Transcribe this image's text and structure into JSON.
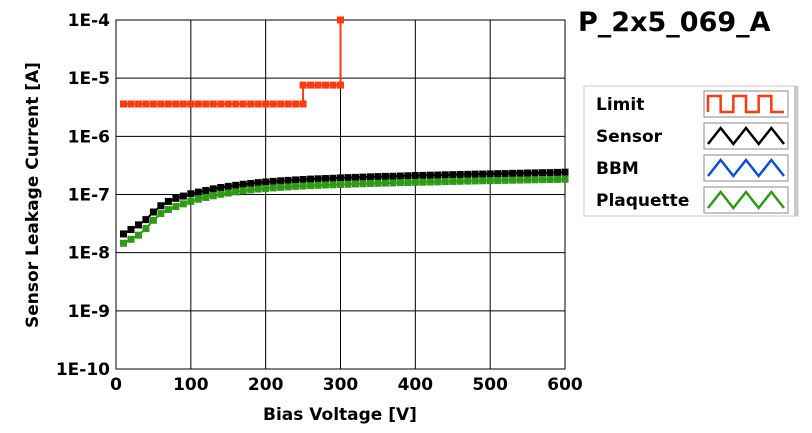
{
  "chart_data": {
    "type": "line",
    "title": "P_2x5_069_A",
    "xlabel": "Bias Voltage [V]",
    "ylabel": "Sensor Leakage Current [A]",
    "xlim": [
      0,
      600
    ],
    "ylim": [
      1e-10,
      0.0001
    ],
    "yscale": "log",
    "grid": true,
    "legend_position": "right",
    "x_ticks": [
      0,
      100,
      200,
      300,
      400,
      500,
      600
    ],
    "x_tick_labels": [
      "0",
      "100",
      "200",
      "300",
      "400",
      "500",
      "600"
    ],
    "y_ticks": [
      1e-10,
      1e-09,
      1e-08,
      1e-07,
      1e-06,
      1e-05,
      0.0001
    ],
    "y_tick_labels": [
      "1E-10",
      "1E-9",
      "1E-8",
      "1E-7",
      "1E-6",
      "1E-5",
      "1E-4"
    ],
    "series": [
      {
        "name": "Limit",
        "color": "#ff3a0f",
        "x": [
          10,
          20,
          30,
          40,
          50,
          60,
          70,
          80,
          90,
          100,
          110,
          120,
          130,
          140,
          150,
          160,
          170,
          180,
          190,
          200,
          210,
          220,
          230,
          240,
          250,
          250,
          260,
          270,
          280,
          290,
          300,
          300
        ],
        "y": [
          3.6e-06,
          3.6e-06,
          3.6e-06,
          3.6e-06,
          3.6e-06,
          3.6e-06,
          3.6e-06,
          3.6e-06,
          3.6e-06,
          3.6e-06,
          3.6e-06,
          3.6e-06,
          3.6e-06,
          3.6e-06,
          3.6e-06,
          3.6e-06,
          3.6e-06,
          3.6e-06,
          3.6e-06,
          3.6e-06,
          3.6e-06,
          3.6e-06,
          3.6e-06,
          3.6e-06,
          3.6e-06,
          7.6e-06,
          7.6e-06,
          7.6e-06,
          7.6e-06,
          7.6e-06,
          7.6e-06,
          0.0001
        ]
      },
      {
        "name": "Sensor",
        "color": "#000000",
        "x": [
          10,
          20,
          30,
          40,
          50,
          60,
          70,
          80,
          90,
          100,
          110,
          120,
          130,
          140,
          150,
          160,
          170,
          180,
          190,
          200,
          210,
          220,
          230,
          240,
          250,
          260,
          270,
          280,
          290,
          300,
          310,
          320,
          330,
          340,
          350,
          360,
          370,
          380,
          390,
          400,
          410,
          420,
          430,
          440,
          450,
          460,
          470,
          480,
          490,
          500,
          510,
          520,
          530,
          540,
          550,
          560,
          570,
          580,
          590,
          600
        ],
        "y": [
          2.1e-08,
          2.5e-08,
          3e-08,
          3.7e-08,
          5e-08,
          6.4e-08,
          7.6e-08,
          8.6e-08,
          9.4e-08,
          1.03e-07,
          1.1e-07,
          1.17e-07,
          1.25e-07,
          1.32e-07,
          1.38e-07,
          1.44e-07,
          1.5e-07,
          1.55e-07,
          1.6e-07,
          1.64e-07,
          1.68e-07,
          1.72e-07,
          1.75e-07,
          1.78e-07,
          1.81e-07,
          1.84e-07,
          1.86e-07,
          1.88e-07,
          1.9e-07,
          1.93e-07,
          1.95e-07,
          1.97e-07,
          1.99e-07,
          2.01e-07,
          2.03e-07,
          2.05e-07,
          2.06e-07,
          2.08e-07,
          2.1e-07,
          2.12e-07,
          2.13e-07,
          2.15e-07,
          2.16e-07,
          2.18e-07,
          2.19e-07,
          2.21e-07,
          2.22e-07,
          2.24e-07,
          2.25e-07,
          2.26e-07,
          2.28e-07,
          2.29e-07,
          2.31e-07,
          2.32e-07,
          2.34e-07,
          2.35e-07,
          2.37e-07,
          2.38e-07,
          2.4e-07,
          2.42e-07
        ]
      },
      {
        "name": "BBM",
        "color": "#0a4fd6",
        "x": [],
        "y": []
      },
      {
        "name": "Plaquette",
        "color": "#2e9a16",
        "x": [
          10,
          20,
          30,
          40,
          50,
          60,
          70,
          80,
          90,
          100,
          110,
          120,
          130,
          140,
          150,
          160,
          170,
          180,
          190,
          200,
          210,
          220,
          230,
          240,
          250,
          260,
          270,
          280,
          290,
          300,
          310,
          320,
          330,
          340,
          350,
          360,
          370,
          380,
          390,
          400,
          410,
          420,
          430,
          440,
          450,
          460,
          470,
          480,
          490,
          500,
          510,
          520,
          530,
          540,
          550,
          560,
          570,
          580,
          590,
          600
        ],
        "y": [
          1.45e-08,
          1.7e-08,
          2e-08,
          2.6e-08,
          3.6e-08,
          4.7e-08,
          5.5e-08,
          6.2e-08,
          6.9e-08,
          7.6e-08,
          8.3e-08,
          8.9e-08,
          9.5e-08,
          1.01e-07,
          1.06e-07,
          1.11e-07,
          1.16e-07,
          1.2e-07,
          1.24e-07,
          1.27e-07,
          1.3e-07,
          1.33e-07,
          1.35e-07,
          1.38e-07,
          1.4e-07,
          1.42e-07,
          1.44e-07,
          1.46e-07,
          1.47e-07,
          1.49e-07,
          1.5e-07,
          1.52e-07,
          1.53e-07,
          1.55e-07,
          1.56e-07,
          1.57e-07,
          1.58e-07,
          1.6e-07,
          1.61e-07,
          1.62e-07,
          1.63e-07,
          1.64e-07,
          1.65e-07,
          1.67e-07,
          1.68e-07,
          1.69e-07,
          1.7e-07,
          1.71e-07,
          1.72e-07,
          1.73e-07,
          1.74e-07,
          1.75e-07,
          1.76e-07,
          1.77e-07,
          1.78e-07,
          1.79e-07,
          1.8e-07,
          1.81e-07,
          1.82e-07,
          1.83e-07
        ]
      }
    ]
  }
}
